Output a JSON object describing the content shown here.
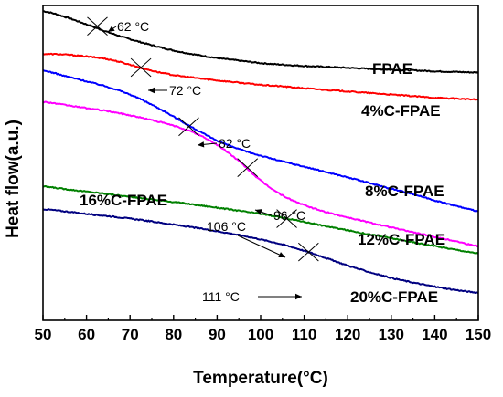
{
  "chart_data": {
    "type": "line",
    "xlabel": "Temperature(°C)",
    "ylabel": "Heat flow(a.u.)",
    "xlim": [
      50,
      150
    ],
    "ylim": [
      0,
      100
    ],
    "xticks": [
      50,
      60,
      70,
      80,
      90,
      100,
      110,
      120,
      130,
      140,
      150
    ],
    "y_tick_labels_shown": false,
    "grid": false,
    "legend": "none",
    "series": [
      {
        "name": "FPAE",
        "color": "#000000",
        "x": [
          50,
          55,
          60,
          65,
          70,
          75,
          80,
          85,
          90,
          95,
          100,
          105,
          110,
          115,
          120,
          125,
          130,
          135,
          140,
          145,
          150
        ],
        "y": [
          98.2,
          96.4,
          94,
          91.5,
          89.3,
          87.4,
          85.7,
          84.4,
          83.3,
          82.5,
          81.7,
          81.2,
          80.8,
          80.5,
          80.2,
          79.9,
          79.6,
          79.4,
          79.1,
          78.9,
          78.7
        ]
      },
      {
        "name": "4%C-FPAE",
        "color": "#ff0000",
        "x": [
          50,
          55,
          60,
          65,
          70,
          75,
          80,
          85,
          90,
          95,
          100,
          105,
          110,
          115,
          120,
          125,
          130,
          135,
          140,
          145,
          150
        ],
        "y": [
          84.6,
          84.4,
          83.8,
          82.9,
          81.2,
          79.3,
          77.9,
          77,
          76.2,
          75.5,
          74.8,
          74.3,
          73.7,
          73.2,
          72.7,
          72.2,
          71.7,
          71.2,
          70.7,
          70.4,
          70.1
        ]
      },
      {
        "name": "8%C-FPAE",
        "color": "#0000ff",
        "x": [
          50,
          55,
          60,
          65,
          70,
          75,
          80,
          85,
          90,
          95,
          100,
          105,
          110,
          115,
          120,
          125,
          130,
          135,
          140,
          145,
          150
        ],
        "y": [
          79.3,
          77.6,
          75.9,
          74.1,
          71.7,
          68.5,
          64.7,
          60.7,
          57.1,
          54.4,
          52.3,
          50.5,
          48.8,
          47.1,
          45.4,
          43.6,
          41.8,
          40.1,
          38.1,
          36.3,
          34.7
        ]
      },
      {
        "name": "12%C-FPAE",
        "color": "#ff00ff",
        "x": [
          50,
          55,
          60,
          65,
          70,
          75,
          80,
          85,
          90,
          95,
          100,
          105,
          110,
          115,
          120,
          125,
          130,
          135,
          140,
          145,
          150
        ],
        "y": [
          69.4,
          68.4,
          67.4,
          66.4,
          65.1,
          63.6,
          61.8,
          59.4,
          55.7,
          50.6,
          44.4,
          39.7,
          36.6,
          34.4,
          32.7,
          31.1,
          29.5,
          28,
          26.5,
          25.1,
          23.6
        ]
      },
      {
        "name": "16%C-FPAE",
        "color": "#008000",
        "x": [
          50,
          55,
          60,
          65,
          70,
          75,
          80,
          85,
          90,
          95,
          100,
          105,
          110,
          115,
          120,
          125,
          130,
          135,
          140,
          145,
          150
        ],
        "y": [
          42.5,
          41.7,
          40.9,
          40.1,
          39.2,
          38.4,
          37.6,
          36.7,
          35.8,
          34.8,
          33.8,
          32.6,
          31.3,
          29.9,
          28.6,
          27.3,
          26.1,
          24.8,
          23.6,
          22.4,
          21.3
        ]
      },
      {
        "name": "20%C-FPAE",
        "color": "#000080",
        "x": [
          50,
          55,
          60,
          65,
          70,
          75,
          80,
          85,
          90,
          95,
          100,
          105,
          110,
          115,
          120,
          125,
          130,
          135,
          140,
          145,
          150
        ],
        "y": [
          35.3,
          34.6,
          33.8,
          33.1,
          32.3,
          31.4,
          30.4,
          29.4,
          28.3,
          27.1,
          25.7,
          24.1,
          22.1,
          19.8,
          17.4,
          15.3,
          13.5,
          12,
          10.7,
          9.6,
          8.8
        ]
      }
    ],
    "annotations": [
      {
        "text": "62 °C",
        "x": 62.5,
        "y": 93.4,
        "series": "FPAE"
      },
      {
        "text": "72 °C",
        "x": 72.5,
        "y": 80.3,
        "series": "4%C-FPAE"
      },
      {
        "text": "82 °C",
        "x": 83.5,
        "y": 61.5,
        "series": "8%C-FPAE"
      },
      {
        "text": "96 °C",
        "x": 97,
        "y": 48.5,
        "series": "12%C-FPAE"
      },
      {
        "text": "106 °C",
        "x": 106,
        "y": 32.3,
        "series": "16%C-FPAE"
      },
      {
        "text": "111 °C",
        "x": 111,
        "y": 21.7,
        "series": "20%C-FPAE"
      }
    ]
  }
}
